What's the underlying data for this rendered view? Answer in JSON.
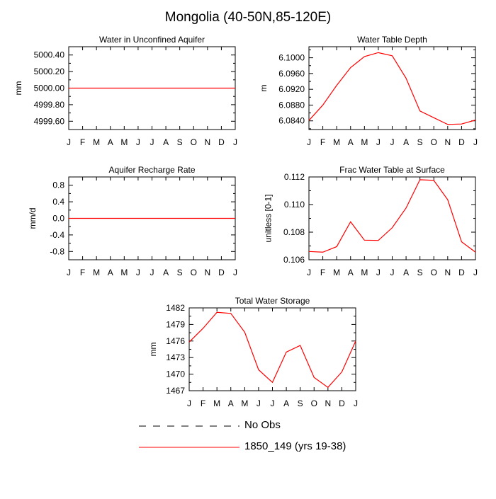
{
  "figure_title": "Mongolia (40-50N,85-120E)",
  "months": [
    "J",
    "F",
    "M",
    "A",
    "M",
    "J",
    "J",
    "A",
    "S",
    "O",
    "N",
    "D",
    "J"
  ],
  "legend": {
    "obs_label": "No Obs",
    "model_label": "1850_149 (yrs 19-38)",
    "obs_color": "#000000",
    "model_color": "#ff0000"
  },
  "chart_data": [
    {
      "id": "panel1",
      "type": "line",
      "title": "Water in Unconfined Aquifer",
      "xlabel": "",
      "ylabel": "mm",
      "ylim": [
        4999.5,
        5000.5
      ],
      "yticks": [
        4999.6,
        4999.8,
        5000.0,
        5000.2,
        5000.4
      ],
      "ytick_labels": [
        "4999.60",
        "4999.80",
        "5000.00",
        "5000.20",
        "5000.40"
      ],
      "series": [
        {
          "name": "1850_149 (yrs 19-38)",
          "values": [
            5000.0,
            5000.0,
            5000.0,
            5000.0,
            5000.0,
            5000.0,
            5000.0,
            5000.0,
            5000.0,
            5000.0,
            5000.0,
            5000.0,
            5000.0
          ]
        }
      ]
    },
    {
      "id": "panel2",
      "type": "line",
      "title": "Water Table Depth",
      "xlabel": "",
      "ylabel": "m",
      "ylim": [
        6.0818,
        6.1028
      ],
      "yticks": [
        6.084,
        6.088,
        6.092,
        6.096,
        6.1
      ],
      "ytick_labels": [
        "6.0840",
        "6.0880",
        "6.0920",
        "6.0960",
        "6.1000"
      ],
      "series": [
        {
          "name": "1850_149 (yrs 19-38)",
          "values": [
            6.0841,
            6.088,
            6.093,
            6.0975,
            6.1003,
            6.1013,
            6.1005,
            6.0948,
            6.0865,
            6.0848,
            6.0831,
            6.0832,
            6.0842
          ]
        }
      ]
    },
    {
      "id": "panel3",
      "type": "line",
      "title": "Aquifer Recharge Rate",
      "xlabel": "",
      "ylabel": "mm/d",
      "ylim": [
        -1.0,
        1.0
      ],
      "yticks": [
        -0.8,
        -0.4,
        0.0,
        0.4,
        0.8
      ],
      "ytick_labels": [
        "-0.8",
        "-0.4",
        "0.0",
        "0.4",
        "0.8"
      ],
      "series": [
        {
          "name": "1850_149 (yrs 19-38)",
          "values": [
            0,
            0,
            0,
            0,
            0,
            0,
            0,
            0,
            0,
            0,
            0,
            0,
            0
          ]
        }
      ]
    },
    {
      "id": "panel4",
      "type": "line",
      "title": "Frac Water Table at Surface",
      "xlabel": "",
      "ylabel": "unitless [0-1]",
      "ylim": [
        0.106,
        0.112
      ],
      "yticks": [
        0.106,
        0.108,
        0.11,
        0.112
      ],
      "ytick_labels": [
        "0.106",
        "0.108",
        "0.110",
        "0.112"
      ],
      "series": [
        {
          "name": "1850_149 (yrs 19-38)",
          "values": [
            0.1066,
            0.10655,
            0.10695,
            0.10875,
            0.10742,
            0.1074,
            0.10832,
            0.10975,
            0.1118,
            0.11175,
            0.11035,
            0.1073,
            0.10655
          ]
        }
      ]
    },
    {
      "id": "panel5",
      "type": "line",
      "title": "Total Water Storage",
      "xlabel": "",
      "ylabel": "mm",
      "ylim": [
        1467,
        1482
      ],
      "yticks": [
        1467,
        1470,
        1473,
        1476,
        1479,
        1482
      ],
      "ytick_labels": [
        "1467",
        "1470",
        "1473",
        "1476",
        "1479",
        "1482"
      ],
      "series": [
        {
          "name": "1850_149 (yrs 19-38)",
          "values": [
            1475.8,
            1478.3,
            1481.2,
            1481.0,
            1477.6,
            1470.8,
            1468.5,
            1474.0,
            1475.2,
            1469.4,
            1467.6,
            1470.4,
            1476.0
          ]
        }
      ]
    }
  ]
}
